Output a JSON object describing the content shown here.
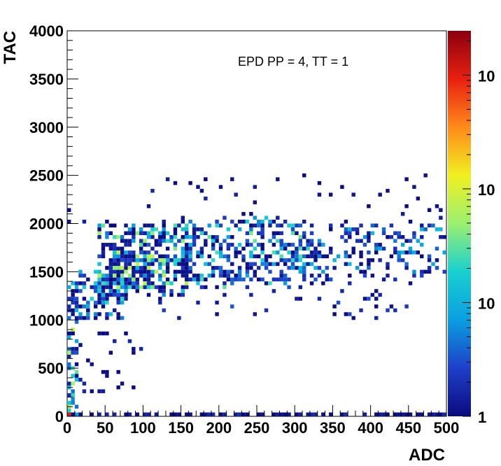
{
  "chart_data": {
    "type": "heatmap",
    "annotation": "EPD PP = 4, TT = 1",
    "xlabel": "ADC",
    "ylabel": "TAC",
    "xlim": [
      0,
      500
    ],
    "ylim": [
      0,
      4000
    ],
    "x_ticks": [
      "0",
      "50",
      "100",
      "150",
      "200",
      "250",
      "300",
      "350",
      "400",
      "450",
      "500"
    ],
    "y_ticks": [
      "0",
      "500",
      "1000",
      "1500",
      "2000",
      "2500",
      "3000",
      "3500",
      "4000"
    ],
    "colorbar": {
      "scale": "log",
      "labels": [
        "1",
        "10",
        "10",
        "10",
        "10"
      ],
      "colors": [
        "#0a0a80",
        "#1e3fc8",
        "#0a9fe0",
        "#18d0d0",
        "#9bf070",
        "#f0f020",
        "#ff8a1a",
        "#e82010",
        "#8a0010"
      ]
    },
    "grid": false,
    "clusters": [
      {
        "x": [
          1,
          14
        ],
        "y": [
          0,
          1400
        ],
        "count": 70,
        "seed": 11,
        "lvl": 0.35
      },
      {
        "x": [
          10,
          80
        ],
        "y": [
          1000,
          1500
        ],
        "count": 110,
        "seed": 23,
        "lvl": 0.25
      },
      {
        "x": [
          40,
          160
        ],
        "y": [
          1250,
          2000
        ],
        "count": 320,
        "seed": 37,
        "lvl": 0.35
      },
      {
        "x": [
          60,
          110
        ],
        "y": [
          1350,
          1700
        ],
        "count": 90,
        "seed": 41,
        "lvl": 0.6
      },
      {
        "x": [
          150,
          320
        ],
        "y": [
          1350,
          2050
        ],
        "count": 330,
        "seed": 53,
        "lvl": 0.3
      },
      {
        "x": [
          320,
          500
        ],
        "y": [
          1450,
          2000
        ],
        "count": 170,
        "seed": 67,
        "lvl": 0.2
      },
      {
        "x": [
          120,
          460
        ],
        "y": [
          1000,
          1500
        ],
        "count": 60,
        "seed": 79,
        "lvl": 0.1
      },
      {
        "x": [
          0,
          500
        ],
        "y": [
          0,
          40
        ],
        "count": 90,
        "seed": 83,
        "lvl": 0.05
      },
      {
        "x": [
          15,
          100
        ],
        "y": [
          200,
          900
        ],
        "count": 30,
        "seed": 97,
        "lvl": 0.05
      },
      {
        "x": [
          0,
          500
        ],
        "y": [
          2000,
          2500
        ],
        "count": 40,
        "seed": 101,
        "lvl": 0.05
      }
    ],
    "singles": [
      {
        "x": 217,
        "y": 2470
      },
      {
        "x": 107,
        "y": 2160
      },
      {
        "x": 178,
        "y": 2320
      },
      {
        "x": 410,
        "y": 2280
      },
      {
        "x": 247,
        "y": 2220
      },
      {
        "x": 495,
        "y": 1860
      },
      {
        "x": 0,
        "y": 20,
        "v": 0.88
      },
      {
        "x": 4,
        "y": 20,
        "v": 0.7
      },
      {
        "x": 1,
        "y": 80,
        "v": 0.55
      }
    ]
  }
}
